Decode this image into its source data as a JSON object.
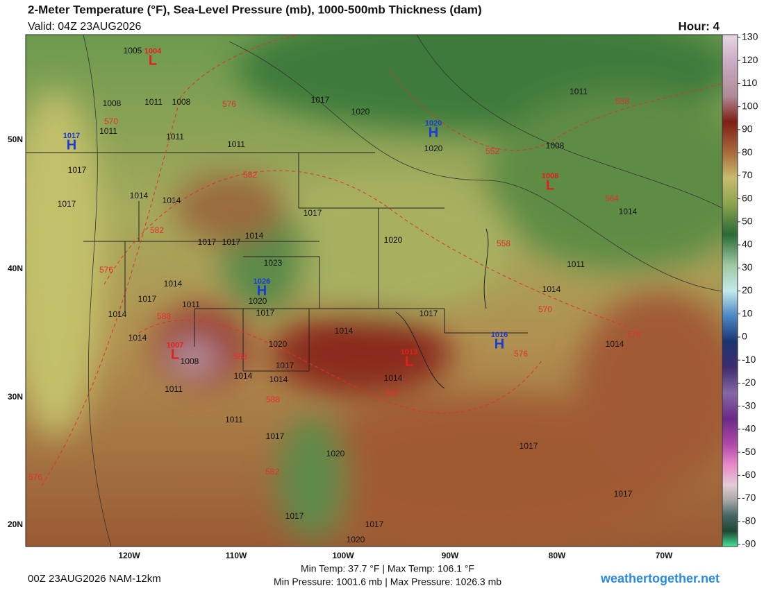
{
  "header": {
    "title": "2-Meter Temperature (°F), Sea-Level Pressure (mb), 1000-500mb Thickness (dam)",
    "valid": "Valid: 04Z 23AUG2026",
    "hour": "Hour: 4"
  },
  "map": {
    "lat_labels": [
      "50N",
      "40N",
      "30N",
      "20N"
    ],
    "lon_labels": [
      "120W",
      "110W",
      "100W",
      "90W",
      "80W",
      "70W"
    ],
    "highs": [
      {
        "letter": "H",
        "value": 1017
      },
      {
        "letter": "H",
        "value": 1020
      },
      {
        "letter": "H",
        "value": 1026
      },
      {
        "letter": "H",
        "value": 1016
      }
    ],
    "lows": [
      {
        "letter": "L",
        "value": 1004
      },
      {
        "letter": "L",
        "value": 1008
      },
      {
        "letter": "L",
        "value": 1007
      },
      {
        "letter": "L",
        "value": 1013
      }
    ],
    "isobar_labels": [
      1005,
      1008,
      1011,
      1008,
      1011,
      1011,
      1011,
      1017,
      1020,
      1020,
      1011,
      1008,
      1017,
      1017,
      1014,
      1014,
      1017,
      1020,
      1017,
      1017,
      1014,
      1023,
      1020,
      1014,
      1017,
      1011,
      1014,
      1017,
      1014,
      1017,
      1011,
      1014,
      1014,
      1014,
      1020,
      1017,
      1014,
      1014,
      1008,
      1014,
      1014,
      1011,
      1017,
      1020,
      1017,
      1017,
      1017,
      1017,
      1020,
      1011
    ],
    "thickness_labels": [
      576,
      570,
      582,
      582,
      576,
      588,
      588,
      588,
      582,
      582,
      576,
      570,
      576,
      576,
      558,
      552,
      558,
      564
    ]
  },
  "colorbar": {
    "ticks": [
      130,
      120,
      110,
      100,
      90,
      80,
      70,
      60,
      50,
      40,
      30,
      20,
      10,
      0,
      -10,
      -20,
      -30,
      -40,
      -50,
      -60,
      -70,
      -80,
      -90
    ]
  },
  "footer": {
    "run": "00Z 23AUG2026 NAM-12km",
    "temp_range": "Min Temp: 37.7 °F | Max Temp: 106.1 °F",
    "pressure_range": "Min Pressure: 1001.6 mb | Max Pressure: 1026.3 mb",
    "site": "weathertogether.net"
  }
}
